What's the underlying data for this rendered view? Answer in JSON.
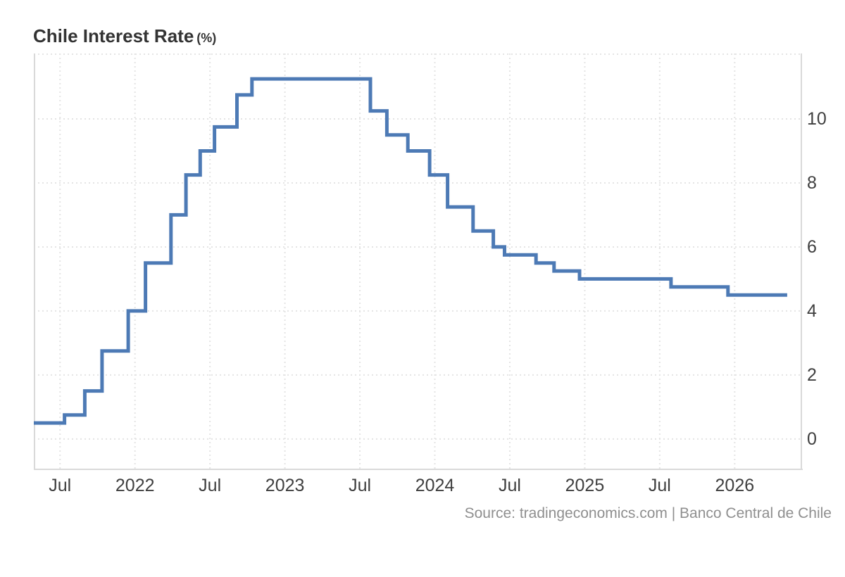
{
  "title": {
    "main": "Chile Interest Rate",
    "unit": "(%)"
  },
  "source": "Source: tradingeconomics.com | Banco Central de Chile",
  "colors": {
    "line": "#4d7ab5",
    "grid": "#e4e4e4",
    "border": "#d9d9d9",
    "title_text": "#333333",
    "tick_text": "#3f3f3f",
    "source_text": "#8f8f8f",
    "background": "#ffffff"
  },
  "chart_data": {
    "type": "line",
    "subtype": "step-after",
    "title": "Chile Interest Rate (%)",
    "ylabel": "",
    "xlabel": "",
    "unit": "%",
    "legend": "none",
    "grid": "dotted",
    "xlim": [
      2021.325,
      2026.454
    ],
    "ylim": [
      -0.97,
      12.044
    ],
    "y_ticks": [
      {
        "label": "0",
        "value": 0
      },
      {
        "label": "2",
        "value": 2
      },
      {
        "label": "4",
        "value": 4
      },
      {
        "label": "6",
        "value": 6
      },
      {
        "label": "8",
        "value": 8
      },
      {
        "label": "10",
        "value": 10
      }
    ],
    "x_ticks": [
      {
        "label": "Jul",
        "value": 2021.5
      },
      {
        "label": "2022",
        "value": 2022.0
      },
      {
        "label": "Jul",
        "value": 2022.5
      },
      {
        "label": "2023",
        "value": 2023.0
      },
      {
        "label": "Jul",
        "value": 2023.5
      },
      {
        "label": "2024",
        "value": 2024.0
      },
      {
        "label": "Jul",
        "value": 2024.5
      },
      {
        "label": "2025",
        "value": 2025.0
      },
      {
        "label": "Jul",
        "value": 2025.5
      },
      {
        "label": "2026",
        "value": 2026.0
      }
    ],
    "series": [
      {
        "name": "Chile Interest Rate",
        "points": [
          [
            2021.325,
            0.5
          ],
          [
            2021.53,
            0.75
          ],
          [
            2021.665,
            1.5
          ],
          [
            2021.78,
            2.75
          ],
          [
            2021.955,
            4.0
          ],
          [
            2022.07,
            5.5
          ],
          [
            2022.24,
            7.0
          ],
          [
            2022.34,
            8.25
          ],
          [
            2022.435,
            9.0
          ],
          [
            2022.53,
            9.75
          ],
          [
            2022.68,
            10.75
          ],
          [
            2022.78,
            11.25
          ],
          [
            2023.57,
            10.25
          ],
          [
            2023.68,
            9.5
          ],
          [
            2023.82,
            9.0
          ],
          [
            2023.965,
            8.25
          ],
          [
            2024.085,
            7.25
          ],
          [
            2024.255,
            6.5
          ],
          [
            2024.39,
            6.0
          ],
          [
            2024.465,
            5.75
          ],
          [
            2024.675,
            5.5
          ],
          [
            2024.795,
            5.25
          ],
          [
            2024.965,
            5.0
          ],
          [
            2025.575,
            4.75
          ],
          [
            2025.955,
            4.5
          ],
          [
            2026.35,
            4.5
          ]
        ]
      }
    ]
  }
}
